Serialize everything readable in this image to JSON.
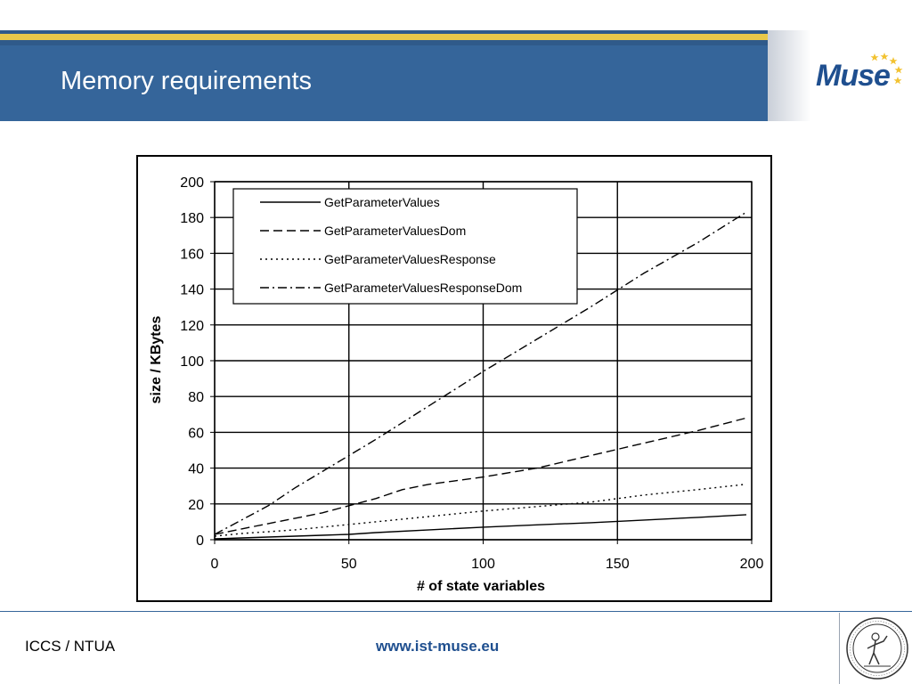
{
  "slide": {
    "title": "Memory requirements",
    "logo": "Muse",
    "footer_left": "ICCS / NTUA",
    "footer_url": "www.ist-muse.eu",
    "seal": "university-seal-icon"
  },
  "chart_data": {
    "type": "line",
    "title": "",
    "xlabel": "# of state variables",
    "ylabel": "size / KBytes",
    "xlim": [
      0,
      200
    ],
    "ylim": [
      0,
      200
    ],
    "x_ticks": [
      0,
      50,
      100,
      150,
      200
    ],
    "y_ticks": [
      0,
      20,
      40,
      60,
      80,
      100,
      120,
      140,
      160,
      180,
      200
    ],
    "grid": true,
    "legend_position": "top-left",
    "series": [
      {
        "name": "GetParameterValues",
        "dash": "solid",
        "points": [
          [
            0,
            0.5
          ],
          [
            10,
            1
          ],
          [
            20,
            1.5
          ],
          [
            30,
            2
          ],
          [
            40,
            2.5
          ],
          [
            50,
            3
          ],
          [
            60,
            4
          ],
          [
            80,
            5.5
          ],
          [
            100,
            7
          ],
          [
            120,
            8.3
          ],
          [
            140,
            9.5
          ],
          [
            160,
            11
          ],
          [
            180,
            12.5
          ],
          [
            198,
            14
          ]
        ]
      },
      {
        "name": "GetParameterValuesDom",
        "dash": "dashed",
        "points": [
          [
            0,
            3
          ],
          [
            10,
            6
          ],
          [
            20,
            9
          ],
          [
            30,
            12
          ],
          [
            40,
            15
          ],
          [
            50,
            19
          ],
          [
            60,
            23
          ],
          [
            70,
            28
          ],
          [
            80,
            31
          ],
          [
            90,
            33
          ],
          [
            100,
            35
          ],
          [
            120,
            40
          ],
          [
            140,
            47
          ],
          [
            160,
            54
          ],
          [
            180,
            61
          ],
          [
            198,
            68
          ]
        ]
      },
      {
        "name": "GetParameterValuesResponse",
        "dash": "dotted",
        "points": [
          [
            0,
            2
          ],
          [
            10,
            3.5
          ],
          [
            20,
            4.5
          ],
          [
            30,
            5.5
          ],
          [
            40,
            7
          ],
          [
            50,
            8.5
          ],
          [
            60,
            10
          ],
          [
            80,
            13
          ],
          [
            100,
            16
          ],
          [
            120,
            18.5
          ],
          [
            140,
            21
          ],
          [
            160,
            25
          ],
          [
            180,
            28
          ],
          [
            198,
            31
          ]
        ]
      },
      {
        "name": "GetParameterValuesResponseDom",
        "dash": "dashdot",
        "points": [
          [
            0,
            3
          ],
          [
            10,
            11
          ],
          [
            20,
            19
          ],
          [
            30,
            29
          ],
          [
            40,
            38
          ],
          [
            50,
            47
          ],
          [
            60,
            56
          ],
          [
            80,
            75
          ],
          [
            100,
            94
          ],
          [
            120,
            112
          ],
          [
            140,
            130
          ],
          [
            160,
            149
          ],
          [
            180,
            166
          ],
          [
            198,
            183
          ]
        ]
      }
    ]
  }
}
